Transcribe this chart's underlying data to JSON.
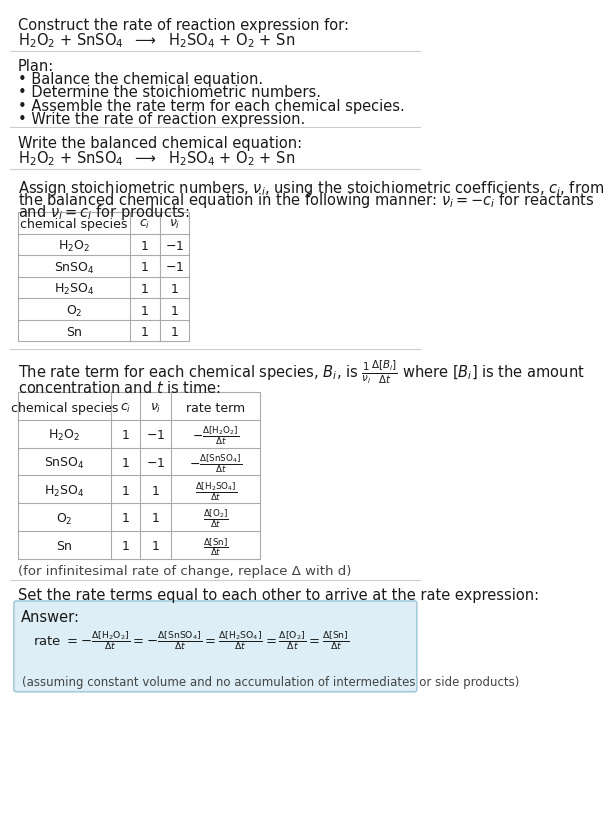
{
  "bg_color": "#ffffff",
  "text_color": "#1a1a1a",
  "gray_text": "#444444",
  "answer_bg": "#ddeef6",
  "answer_border": "#99c4d8",
  "title_line1": "Construct the rate of reaction expression for:",
  "title_line2_parts": [
    "H",
    "2",
    "O",
    "2",
    " + SnSO",
    "4",
    "  ⟶  H",
    "2",
    "SO",
    "4",
    " + O",
    "2",
    " + Sn"
  ],
  "plan_header": "Plan:",
  "plan_items": [
    "• Balance the chemical equation.",
    "• Determine the stoichiometric numbers.",
    "• Assemble the rate term for each chemical species.",
    "• Write the rate of reaction expression."
  ],
  "balanced_header": "Write the balanced chemical equation:",
  "assign_text1": "Assign stoichiometric numbers, $\\nu_i$, using the stoichiometric coefficients, $c_i$, from",
  "assign_text2": "the balanced chemical equation in the following manner: $\\nu_i = -c_i$ for reactants",
  "assign_text3": "and $\\nu_i = c_i$ for products:",
  "table1_headers": [
    "chemical species",
    "$c_i$",
    "$\\nu_i$"
  ],
  "table1_rows": [
    [
      "$\\mathregular{H_2O_2}$",
      "1",
      "$-1$"
    ],
    [
      "$\\mathregular{SnSO_4}$",
      "1",
      "$-1$"
    ],
    [
      "$\\mathregular{H_2SO_4}$",
      "1",
      "$1$"
    ],
    [
      "$\\mathregular{O_2}$",
      "1",
      "$1$"
    ],
    [
      "$\\mathregular{Sn}$",
      "1",
      "$1$"
    ]
  ],
  "rate_text1": "The rate term for each chemical species, $B_i$, is $\\frac{1}{\\nu_i}\\frac{\\Delta[B_i]}{\\Delta t}$ where $[B_i]$ is the amount",
  "rate_text2": "concentration and $t$ is time:",
  "table2_headers": [
    "chemical species",
    "$c_i$",
    "$\\nu_i$",
    "rate term"
  ],
  "table2_rows": [
    [
      "$\\mathregular{H_2O_2}$",
      "1",
      "$-1$",
      "$-\\frac{\\Delta[\\mathregular{H_2O_2}]}{\\Delta t}$"
    ],
    [
      "$\\mathregular{SnSO_4}$",
      "1",
      "$-1$",
      "$-\\frac{\\Delta[\\mathregular{SnSO_4}]}{\\Delta t}$"
    ],
    [
      "$\\mathregular{H_2SO_4}$",
      "1",
      "$1$",
      "$\\frac{\\Delta[\\mathregular{H_2SO_4}]}{\\Delta t}$"
    ],
    [
      "$\\mathregular{O_2}$",
      "1",
      "$1$",
      "$\\frac{\\Delta[\\mathregular{O_2}]}{\\Delta t}$"
    ],
    [
      "$\\mathregular{Sn}$",
      "1",
      "$1$",
      "$\\frac{\\Delta[\\mathregular{Sn}]}{\\Delta t}$"
    ]
  ],
  "infinitesimal_note": "(for infinitesimal rate of change, replace Δ with d)",
  "set_equal_text": "Set the rate terms equal to each other to arrive at the rate expression:",
  "answer_label": "Answer:",
  "answer_note": "(assuming constant volume and no accumulation of intermediates or side products)"
}
